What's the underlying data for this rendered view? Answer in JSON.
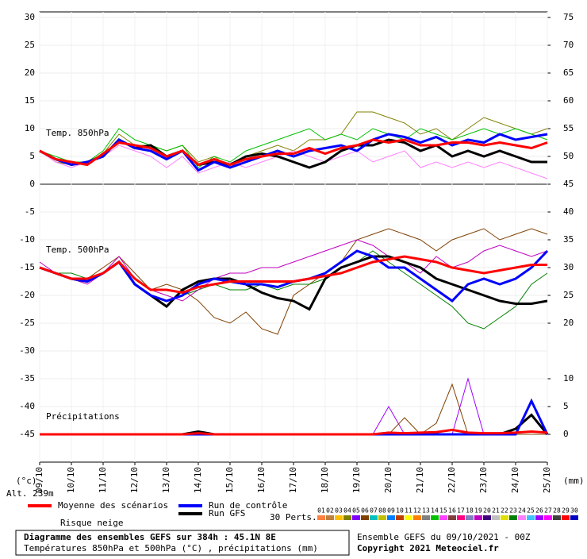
{
  "chart_data": {
    "type": "line",
    "xlim": [
      0,
      384
    ],
    "xticks": [
      {
        "value": 0,
        "label": "09/10"
      },
      {
        "value": 24,
        "label": "10/10"
      },
      {
        "value": 48,
        "label": "11/10"
      },
      {
        "value": 72,
        "label": "12/10"
      },
      {
        "value": 96,
        "label": "13/10"
      },
      {
        "value": 120,
        "label": "14/10"
      },
      {
        "value": 144,
        "label": "15/10"
      },
      {
        "value": 168,
        "label": "16/10"
      },
      {
        "value": 192,
        "label": "17/10"
      },
      {
        "value": 216,
        "label": "18/10"
      },
      {
        "value": 240,
        "label": "19/10"
      },
      {
        "value": 264,
        "label": "20/10"
      },
      {
        "value": 288,
        "label": "21/10"
      },
      {
        "value": 312,
        "label": "22/10"
      },
      {
        "value": 336,
        "label": "23/10"
      },
      {
        "value": 360,
        "label": "24/10"
      },
      {
        "value": 384,
        "label": "25/10"
      }
    ],
    "ylim": [
      -50,
      31
    ],
    "yticks": [
      30,
      25,
      20,
      15,
      10,
      5,
      0,
      -5,
      -10,
      -15,
      -20,
      -25,
      -30,
      -35,
      -40,
      -45
    ],
    "y2lim": [
      -5,
      76
    ],
    "y2ticks": [
      75,
      70,
      65,
      60,
      55,
      50,
      45,
      40,
      35,
      30,
      25,
      20,
      10,
      5,
      0
    ],
    "y_unit": "(°c)",
    "y2_unit": "(mm)",
    "altitude": "Alt. 239m",
    "grid": true,
    "x": [
      0,
      12,
      24,
      36,
      48,
      60,
      72,
      84,
      96,
      108,
      120,
      132,
      144,
      156,
      168,
      180,
      192,
      204,
      216,
      228,
      240,
      252,
      264,
      276,
      288,
      300,
      312,
      324,
      336,
      348,
      360,
      372,
      384
    ],
    "panels": [
      {
        "label": "Temp. 850hPa",
        "axis": "y",
        "series": [
          {
            "color": "#808000",
            "values": [
              6,
              4,
              3.5,
              4,
              5.5,
              9,
              7,
              7,
              6,
              7,
              4,
              5,
              3,
              5,
              6,
              7,
              6,
              8,
              8,
              9,
              13,
              13,
              12,
              11,
              9,
              10,
              8,
              10,
              12,
              11,
              10,
              9,
              10
            ]
          },
          {
            "color": "#ff80ff",
            "values": [
              6,
              4,
              3,
              4,
              5,
              7,
              6,
              5,
              3,
              5,
              2,
              3,
              4,
              3,
              4,
              5,
              6,
              5,
              4,
              5,
              6,
              4,
              5,
              6,
              3,
              4,
              3,
              4,
              3,
              4,
              3,
              2,
              1
            ]
          },
          {
            "color": "#00c000",
            "values": [
              6,
              5,
              4,
              4,
              6,
              10,
              8,
              7,
              6,
              7,
              3,
              5,
              4,
              6,
              7,
              8,
              9,
              10,
              8,
              9,
              8,
              10,
              9,
              8,
              10,
              9,
              8,
              9,
              10,
              9,
              10,
              9,
              8
            ]
          },
          {
            "color": "#000000",
            "values": [
              6,
              4.5,
              3.5,
              4,
              5,
              8,
              6.5,
              7,
              5,
              6,
              3.5,
              4,
              3.5,
              5,
              5.5,
              5,
              4,
              3,
              4,
              6,
              7,
              7,
              8,
              7.5,
              6,
              7,
              5,
              6,
              5,
              6,
              5,
              4,
              4
            ]
          },
          {
            "color": "#0000ff",
            "values": [
              6,
              4.5,
              3.5,
              4,
              5,
              8,
              6.5,
              6,
              4.5,
              6,
              2.5,
              4,
              3,
              4,
              5,
              6,
              5,
              6,
              6.5,
              7,
              6,
              8,
              9,
              8.5,
              7.5,
              8.5,
              7,
              8,
              7.5,
              9,
              8,
              8.5,
              9
            ]
          },
          {
            "color": "#ff0000",
            "values": [
              6,
              4.5,
              4,
              3.5,
              5.5,
              7.5,
              7,
              6.5,
              5,
              6,
              3.5,
              4.5,
              3.5,
              4.5,
              5,
              5.5,
              5.5,
              6.5,
              5.5,
              6.5,
              7,
              8,
              7.5,
              8,
              7,
              7,
              7.5,
              7.5,
              7,
              7.5,
              7,
              6.5,
              7.5
            ]
          }
        ]
      },
      {
        "label": "Temp. 500hPa",
        "axis": "y",
        "series": [
          {
            "color": "#804000",
            "values": [
              -15,
              -16,
              -17,
              -17,
              -15,
              -13,
              -16,
              -19,
              -18,
              -19,
              -21,
              -24,
              -25,
              -23,
              -26,
              -27,
              -20,
              -18,
              -16,
              -14,
              -10,
              -9,
              -8,
              -9,
              -10,
              -12,
              -10,
              -9,
              -8,
              -10,
              -9,
              -8,
              -9
            ]
          },
          {
            "color": "#008000",
            "values": [
              -15,
              -16,
              -16,
              -17,
              -16,
              -14,
              -18,
              -20,
              -21,
              -20,
              -19,
              -18,
              -19,
              -19,
              -18,
              -19,
              -18,
              -18,
              -17,
              -15,
              -14,
              -12,
              -14,
              -16,
              -18,
              -20,
              -22,
              -25,
              -26,
              -24,
              -22,
              -18,
              -16
            ]
          },
          {
            "color": "#c000c0",
            "values": [
              -14,
              -16,
              -17,
              -18,
              -16,
              -13,
              -17,
              -19,
              -20,
              -21,
              -19,
              -17,
              -16,
              -16,
              -15,
              -15,
              -14,
              -13,
              -12,
              -11,
              -10,
              -11,
              -13,
              -14,
              -16,
              -13,
              -15,
              -14,
              -12,
              -11,
              -12,
              -13,
              -12
            ]
          },
          {
            "color": "#000000",
            "values": [
              -15,
              -16,
              -17,
              -17.5,
              -16,
              -14,
              -18,
              -20,
              -22,
              -19,
              -17.5,
              -17,
              -17,
              -18,
              -19.5,
              -20.5,
              -21,
              -22.5,
              -17,
              -15,
              -14,
              -13,
              -13,
              -14,
              -15,
              -17,
              -18,
              -19,
              -20,
              -21,
              -21.5,
              -21.5,
              -21
            ]
          },
          {
            "color": "#0000ff",
            "values": [
              -15,
              -16,
              -17,
              -17.5,
              -16,
              -14,
              -18,
              -20,
              -21,
              -20,
              -18,
              -17,
              -17.5,
              -18,
              -18,
              -18.5,
              -17.5,
              -17,
              -16,
              -14,
              -12,
              -13,
              -15,
              -15,
              -17,
              -19,
              -21,
              -18,
              -17,
              -18,
              -17,
              -15,
              -12
            ]
          },
          {
            "color": "#ff0000",
            "values": [
              -15,
              -16,
              -17,
              -17,
              -16,
              -14,
              -17,
              -19,
              -19,
              -19.5,
              -18.5,
              -18,
              -17.5,
              -17.5,
              -17.5,
              -17.5,
              -17.5,
              -17,
              -16.5,
              -16,
              -15,
              -14,
              -13.5,
              -13,
              -13.5,
              -14,
              -15,
              -15.5,
              -16,
              -15.5,
              -15,
              -14.5,
              -14.5
            ]
          }
        ]
      },
      {
        "label": "Précipitations",
        "axis": "y2",
        "series": [
          {
            "color": "#a000ff",
            "values": [
              0,
              0,
              0,
              0,
              0,
              0,
              0,
              0,
              0,
              0,
              0,
              0,
              0,
              0,
              0,
              0,
              0,
              0,
              0,
              0,
              0,
              0,
              5,
              0,
              0,
              0,
              0,
              10,
              0,
              0,
              0,
              0,
              0
            ]
          },
          {
            "color": "#804000",
            "values": [
              0,
              0,
              0,
              0,
              0,
              0,
              0,
              0,
              0,
              0,
              0,
              0,
              0,
              0,
              0,
              0,
              0,
              0,
              0,
              0,
              0,
              0,
              0,
              3,
              0,
              2,
              9,
              0,
              0,
              0,
              0,
              0,
              0
            ]
          },
          {
            "color": "#000000",
            "values": [
              0,
              0,
              0,
              0,
              0,
              0,
              0,
              0,
              0,
              0,
              0.5,
              0,
              0,
              0,
              0,
              0,
              0,
              0,
              0,
              0,
              0,
              0,
              0,
              0,
              0,
              0,
              0,
              0,
              0,
              0,
              1,
              3.5,
              0
            ]
          },
          {
            "color": "#0000ff",
            "values": [
              0,
              0,
              0,
              0,
              0,
              0,
              0,
              0,
              0,
              0,
              0,
              0,
              0,
              0,
              0,
              0,
              0,
              0,
              0,
              0,
              0,
              0,
              0,
              0,
              0,
              0,
              0,
              0,
              0,
              0,
              0,
              6,
              0
            ]
          },
          {
            "color": "#ff0000",
            "values": [
              0,
              0,
              0,
              0,
              0,
              0,
              0,
              0,
              0,
              0,
              0.2,
              0,
              0,
              0,
              0,
              0,
              0,
              0,
              0,
              0,
              0,
              0,
              0.3,
              0.2,
              0.3,
              0.4,
              0.8,
              0.3,
              0.2,
              0.2,
              0.3,
              0.5,
              0.3
            ]
          }
        ]
      }
    ],
    "legend": [
      {
        "name": "Moyenne des scénarios",
        "color": "#ff0000"
      },
      {
        "name": "Run de contrôle",
        "color": "#0000ff"
      },
      {
        "name": "Run GFS",
        "color": "#000000"
      }
    ],
    "snow_label": "Risque neige",
    "perts_label": "30 Perts.",
    "pert_legend": [
      {
        "label": "01",
        "color": "#ff8040"
      },
      {
        "label": "02",
        "color": "#c08040"
      },
      {
        "label": "03",
        "color": "#ffc000"
      },
      {
        "label": "04",
        "color": "#808000"
      },
      {
        "label": "05",
        "color": "#8000ff"
      },
      {
        "label": "06",
        "color": "#804000"
      },
      {
        "label": "07",
        "color": "#00c0c0"
      },
      {
        "label": "08",
        "color": "#c0c000"
      },
      {
        "label": "09",
        "color": "#0080ff"
      },
      {
        "label": "10",
        "color": "#c04000"
      },
      {
        "label": "11",
        "color": "#ffff00"
      },
      {
        "label": "12",
        "color": "#ff8000"
      },
      {
        "label": "13",
        "color": "#808080"
      },
      {
        "label": "14",
        "color": "#00c000"
      },
      {
        "label": "15",
        "color": "#ff40ff"
      },
      {
        "label": "16",
        "color": "#804040"
      },
      {
        "label": "17",
        "color": "#ff0080"
      },
      {
        "label": "18",
        "color": "#8080c0"
      },
      {
        "label": "19",
        "color": "#c000c0"
      },
      {
        "label": "20",
        "color": "#400080"
      },
      {
        "label": "21",
        "color": "#c0c0c0"
      },
      {
        "label": "22",
        "color": "#e0e000"
      },
      {
        "label": "23",
        "color": "#008000"
      },
      {
        "label": "24",
        "color": "#ff80ff"
      },
      {
        "label": "25",
        "color": "#40c0ff"
      },
      {
        "label": "26",
        "color": "#a000ff"
      },
      {
        "label": "27",
        "color": "#ff00ff"
      },
      {
        "label": "28",
        "color": "#404040"
      },
      {
        "label": "29",
        "color": "#ff0000"
      },
      {
        "label": "30",
        "color": "#0000c0"
      }
    ],
    "footer": {
      "title": "Diagramme des ensembles GEFS sur 384h : 45.1N 8E",
      "subtitle": "Températures 850hPa et 500hPa (°C) , précipitations (mm)",
      "run": "Ensemble GEFS du 09/10/2021 - 00Z",
      "copyright": "Copyright 2021 Meteociel.fr"
    }
  }
}
